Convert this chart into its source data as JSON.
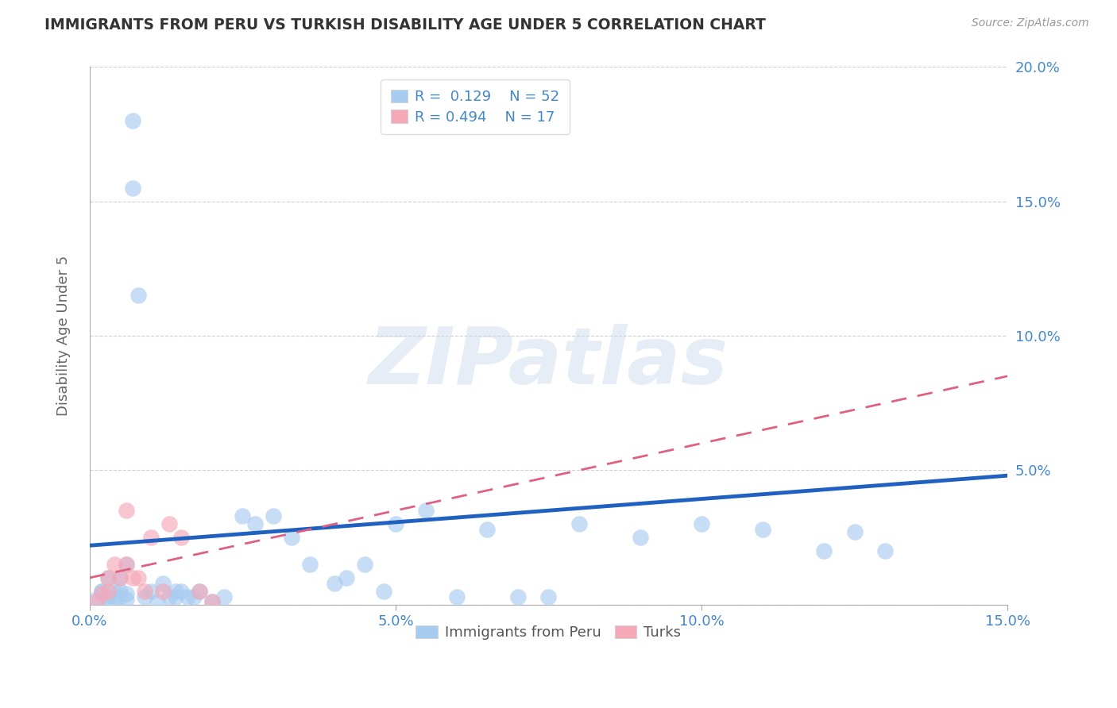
{
  "title": "IMMIGRANTS FROM PERU VS TURKISH DISABILITY AGE UNDER 5 CORRELATION CHART",
  "source": "Source: ZipAtlas.com",
  "ylabel": "Disability Age Under 5",
  "xlim": [
    0.0,
    0.15
  ],
  "ylim": [
    0.0,
    0.2
  ],
  "xticks": [
    0.0,
    0.05,
    0.1,
    0.15
  ],
  "xticklabels": [
    "0.0%",
    "5.0%",
    "10.0%",
    "15.0%"
  ],
  "yticks": [
    0.0,
    0.05,
    0.1,
    0.15,
    0.2
  ],
  "yticklabels": [
    "",
    "5.0%",
    "10.0%",
    "15.0%",
    "20.0%"
  ],
  "blue_color": "#A8CCF0",
  "pink_color": "#F4A8B8",
  "blue_line_color": "#2060C0",
  "pink_line_color": "#E06080",
  "background": "#FFFFFF",
  "grid_color": "#BBBBBB",
  "title_color": "#333333",
  "axis_label_color": "#4488CC",
  "tick_label_color": "#4488CC",
  "watermark": "ZIPatlas",
  "legend_r_blue": "R =  0.129",
  "legend_n_blue": "N = 52",
  "legend_r_pink": "R = 0.494",
  "legend_n_pink": "N = 17",
  "blue_scatter_x": [
    0.001,
    0.002,
    0.002,
    0.003,
    0.003,
    0.003,
    0.004,
    0.004,
    0.005,
    0.005,
    0.005,
    0.006,
    0.006,
    0.006,
    0.007,
    0.007,
    0.008,
    0.009,
    0.01,
    0.011,
    0.012,
    0.013,
    0.014,
    0.014,
    0.015,
    0.016,
    0.017,
    0.018,
    0.02,
    0.022,
    0.025,
    0.027,
    0.03,
    0.033,
    0.036,
    0.04,
    0.042,
    0.045,
    0.048,
    0.05,
    0.055,
    0.06,
    0.065,
    0.07,
    0.075,
    0.08,
    0.09,
    0.1,
    0.11,
    0.12,
    0.125,
    0.13
  ],
  "blue_scatter_y": [
    0.002,
    0.005,
    0.005,
    0.002,
    0.003,
    0.01,
    0.002,
    0.005,
    0.003,
    0.005,
    0.01,
    0.002,
    0.004,
    0.015,
    0.18,
    0.155,
    0.115,
    0.003,
    0.005,
    0.001,
    0.008,
    0.003,
    0.005,
    0.003,
    0.005,
    0.003,
    0.003,
    0.005,
    0.001,
    0.003,
    0.033,
    0.03,
    0.033,
    0.025,
    0.015,
    0.008,
    0.01,
    0.015,
    0.005,
    0.03,
    0.035,
    0.003,
    0.028,
    0.003,
    0.003,
    0.03,
    0.025,
    0.03,
    0.028,
    0.02,
    0.027,
    0.02
  ],
  "pink_scatter_x": [
    0.001,
    0.002,
    0.003,
    0.003,
    0.004,
    0.005,
    0.006,
    0.006,
    0.007,
    0.008,
    0.009,
    0.01,
    0.012,
    0.013,
    0.015,
    0.018,
    0.02
  ],
  "pink_scatter_y": [
    0.001,
    0.004,
    0.01,
    0.005,
    0.015,
    0.01,
    0.035,
    0.015,
    0.01,
    0.01,
    0.005,
    0.025,
    0.005,
    0.03,
    0.025,
    0.005,
    0.001
  ],
  "blue_trend_x": [
    0.0,
    0.15
  ],
  "blue_trend_y": [
    0.022,
    0.048
  ],
  "pink_trend_x": [
    0.0,
    0.15
  ],
  "pink_trend_y": [
    0.01,
    0.085
  ]
}
